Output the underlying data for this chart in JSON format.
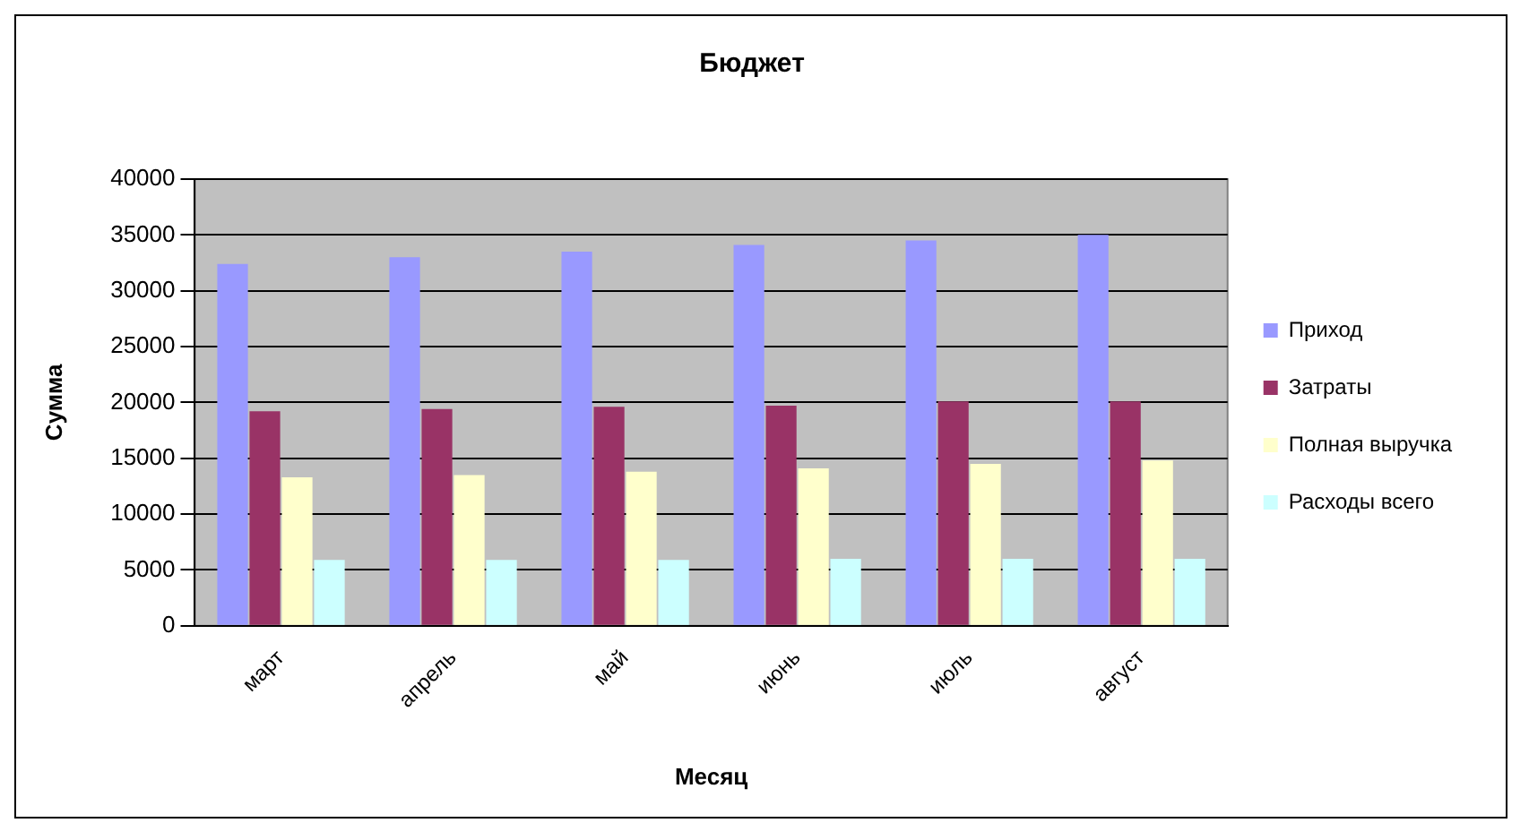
{
  "chart_data": {
    "type": "bar",
    "title": "Бюджет",
    "xlabel": "Месяц",
    "ylabel": "Сумма",
    "categories": [
      "март",
      "апрель",
      "май",
      "июнь",
      "июль",
      "август"
    ],
    "series": [
      {
        "name": "Приход",
        "color": "#9999ff",
        "values": [
          32400,
          33000,
          33500,
          34100,
          34500,
          35000
        ]
      },
      {
        "name": "Затраты",
        "color": "#993366",
        "values": [
          19200,
          19400,
          19600,
          19700,
          20100,
          20100
        ]
      },
      {
        "name": "Полная выручка",
        "color": "#ffffcc",
        "values": [
          13300,
          13500,
          13800,
          14100,
          14500,
          14800
        ]
      },
      {
        "name": "Расходы всего",
        "color": "#ccffff",
        "values": [
          5900,
          5900,
          5900,
          6000,
          6000,
          6000
        ]
      }
    ],
    "ylim": [
      0,
      40000
    ],
    "yticks": [
      0,
      5000,
      10000,
      15000,
      20000,
      25000,
      30000,
      35000,
      40000
    ],
    "grid": "y",
    "legend": "right"
  }
}
